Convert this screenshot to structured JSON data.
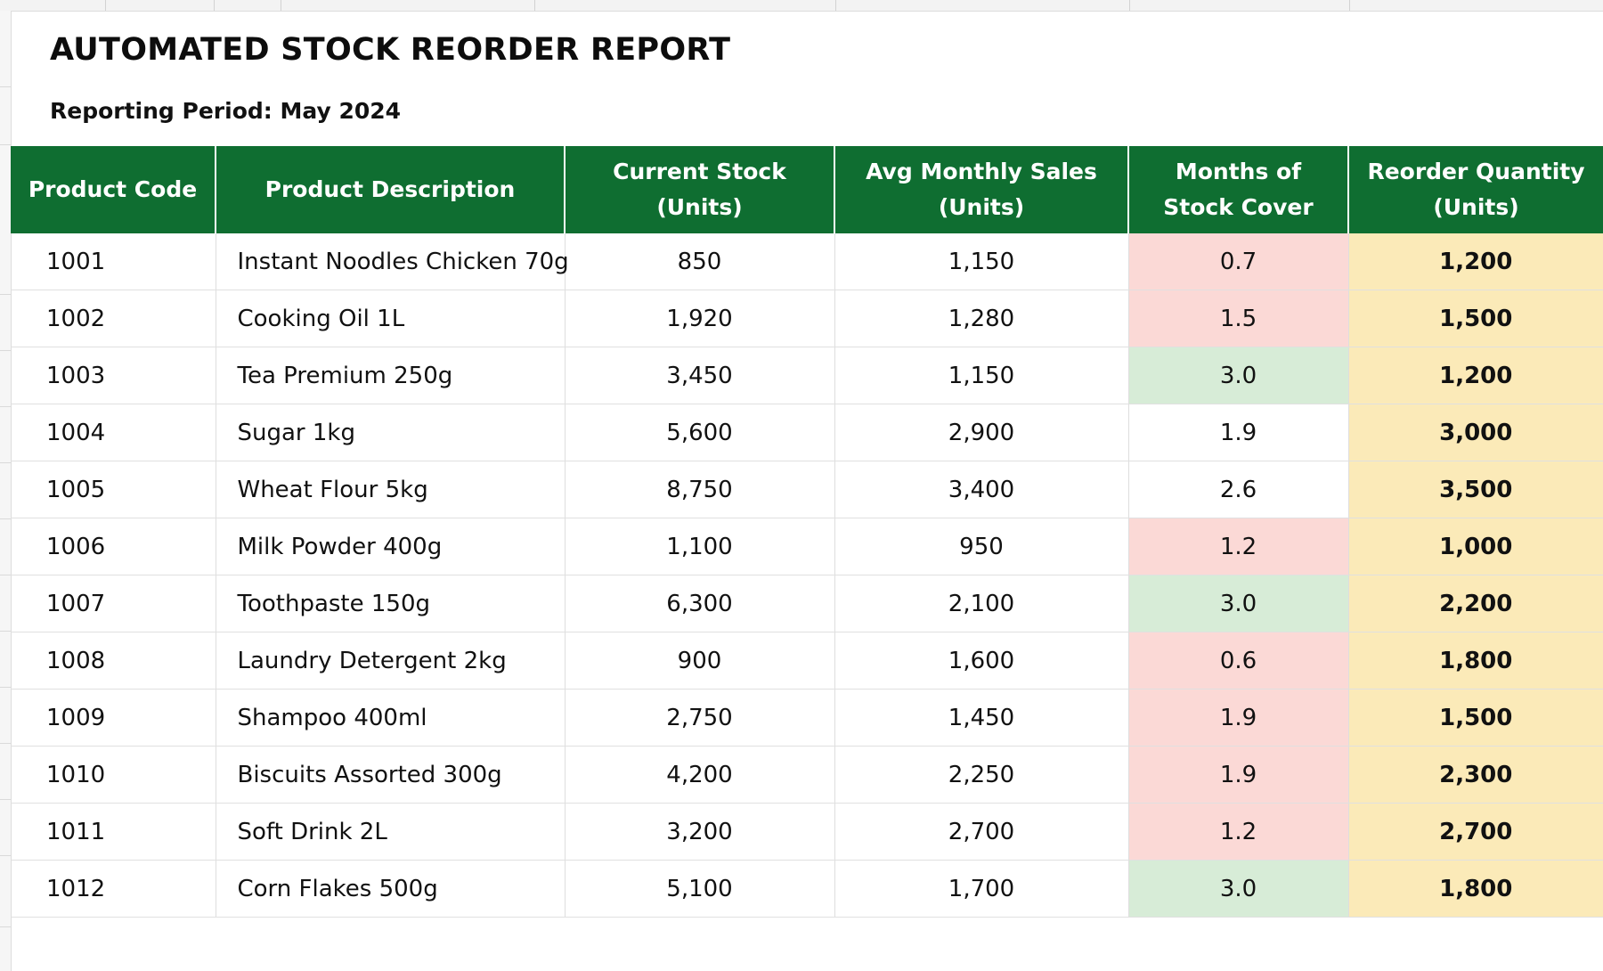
{
  "report": {
    "title": "AUTOMATED STOCK REORDER REPORT",
    "period": "Reporting Period: May 2024"
  },
  "colors": {
    "header_green": "#0f6e31",
    "cover_low": "#fbd9d6",
    "cover_ok": "#d7ecd7",
    "reorder_fill": "#fbeab8"
  },
  "table": {
    "headers": {
      "code": "Product Code",
      "desc": "Product Description",
      "stock_1": "Current Stock",
      "stock_2": "(Units)",
      "sales_1": "Avg Monthly Sales",
      "sales_2": "(Units)",
      "cover_1": "Months of",
      "cover_2": "Stock Cover",
      "reorder_1": "Reorder Quantity",
      "reorder_2": "(Units)"
    },
    "rows": [
      {
        "code": "1001",
        "desc": "Instant Noodles Chicken 70g",
        "stock": "850",
        "sales": "1,150",
        "cover": "0.7",
        "cover_status": "red",
        "reorder": "1,200"
      },
      {
        "code": "1002",
        "desc": "Cooking Oil 1L",
        "stock": "1,920",
        "sales": "1,280",
        "cover": "1.5",
        "cover_status": "red",
        "reorder": "1,500"
      },
      {
        "code": "1003",
        "desc": "Tea Premium 250g",
        "stock": "3,450",
        "sales": "1,150",
        "cover": "3.0",
        "cover_status": "green",
        "reorder": "1,200"
      },
      {
        "code": "1004",
        "desc": "Sugar 1kg",
        "stock": "5,600",
        "sales": "2,900",
        "cover": "1.9",
        "cover_status": "none",
        "reorder": "3,000"
      },
      {
        "code": "1005",
        "desc": "Wheat Flour 5kg",
        "stock": "8,750",
        "sales": "3,400",
        "cover": "2.6",
        "cover_status": "none",
        "reorder": "3,500"
      },
      {
        "code": "1006",
        "desc": "Milk Powder 400g",
        "stock": "1,100",
        "sales": "950",
        "cover": "1.2",
        "cover_status": "red",
        "reorder": "1,000"
      },
      {
        "code": "1007",
        "desc": "Toothpaste 150g",
        "stock": "6,300",
        "sales": "2,100",
        "cover": "3.0",
        "cover_status": "green",
        "reorder": "2,200"
      },
      {
        "code": "1008",
        "desc": "Laundry Detergent 2kg",
        "stock": "900",
        "sales": "1,600",
        "cover": "0.6",
        "cover_status": "red",
        "reorder": "1,800"
      },
      {
        "code": "1009",
        "desc": "Shampoo 400ml",
        "stock": "2,750",
        "sales": "1,450",
        "cover": "1.9",
        "cover_status": "red",
        "reorder": "1,500"
      },
      {
        "code": "1010",
        "desc": "Biscuits Assorted 300g",
        "stock": "4,200",
        "sales": "2,250",
        "cover": "1.9",
        "cover_status": "red",
        "reorder": "2,300"
      },
      {
        "code": "1011",
        "desc": "Soft Drink 2L",
        "stock": "3,200",
        "sales": "2,700",
        "cover": "1.2",
        "cover_status": "red",
        "reorder": "2,700"
      },
      {
        "code": "1012",
        "desc": "Corn Flakes 500g",
        "stock": "5,100",
        "sales": "1,700",
        "cover": "3.0",
        "cover_status": "green",
        "reorder": "1,800"
      }
    ]
  }
}
